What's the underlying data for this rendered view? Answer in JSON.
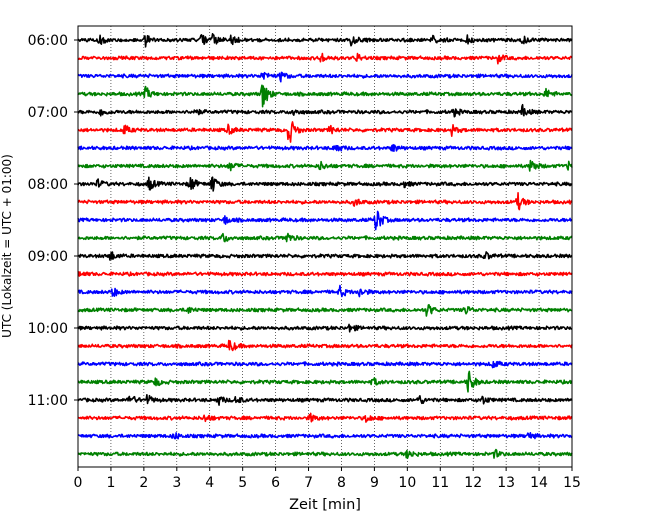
{
  "chart_data": {
    "type": "line",
    "subtype": "helicorder-seismogram",
    "xlabel": "Zeit  [min]",
    "ylabel": "UTC (Lokalzeit = UTC + 01:00)",
    "xlim": [
      0,
      15
    ],
    "x_ticks": [
      0,
      1,
      2,
      3,
      4,
      5,
      6,
      7,
      8,
      9,
      10,
      11,
      12,
      13,
      14,
      15
    ],
    "x_tick_labels": [
      "0",
      "1",
      "2",
      "3",
      "4",
      "5",
      "6",
      "7",
      "8",
      "9",
      "10",
      "11",
      "12",
      "13",
      "14",
      "15"
    ],
    "y_tick_labels": [
      {
        "label": "06:00",
        "trace": 0
      },
      {
        "label": "07:00",
        "trace": 4
      },
      {
        "label": "08:00",
        "trace": 8
      },
      {
        "label": "09:00",
        "trace": 12
      },
      {
        "label": "10:00",
        "trace": 16
      },
      {
        "label": "11:00",
        "trace": 20
      }
    ],
    "grid": "vertical-dotted",
    "minutes_per_trace": 15,
    "trace_colors": [
      "#000000",
      "#ff0000",
      "#0000ff",
      "#008000"
    ],
    "traces": [
      {
        "start": "06:00",
        "events": [
          [
            0.65,
            0.3
          ],
          [
            2.05,
            0.35
          ],
          [
            3.75,
            0.3
          ],
          [
            4.1,
            0.35
          ],
          [
            4.65,
            0.3
          ],
          [
            8.3,
            0.35
          ],
          [
            10.75,
            0.25
          ],
          [
            11.8,
            0.25
          ],
          [
            13.5,
            0.25
          ]
        ]
      },
      {
        "start": "06:15",
        "events": [
          [
            7.35,
            0.35
          ],
          [
            8.45,
            0.25
          ],
          [
            12.75,
            0.25
          ]
        ]
      },
      {
        "start": "06:30",
        "events": [
          [
            5.6,
            0.35
          ],
          [
            6.15,
            0.3
          ]
        ]
      },
      {
        "start": "06:45",
        "events": [
          [
            2.05,
            0.4
          ],
          [
            5.6,
            1.0
          ],
          [
            14.2,
            0.3
          ]
        ]
      },
      {
        "start": "07:00",
        "events": [
          [
            0.7,
            0.25
          ],
          [
            3.5,
            0.25
          ],
          [
            6.5,
            0.25
          ],
          [
            11.4,
            0.25
          ],
          [
            13.5,
            0.35
          ]
        ]
      },
      {
        "start": "07:15",
        "events": [
          [
            1.4,
            0.3
          ],
          [
            4.55,
            0.3
          ],
          [
            6.4,
            1.0
          ],
          [
            7.65,
            0.25
          ],
          [
            11.35,
            0.3
          ]
        ]
      },
      {
        "start": "07:30",
        "events": [
          [
            7.8,
            0.35
          ],
          [
            9.55,
            0.25
          ]
        ]
      },
      {
        "start": "07:45",
        "events": [
          [
            4.6,
            0.3
          ],
          [
            7.35,
            0.25
          ],
          [
            13.75,
            0.5
          ],
          [
            14.9,
            0.3
          ]
        ]
      },
      {
        "start": "08:00",
        "events": [
          [
            0.6,
            0.25
          ],
          [
            2.15,
            0.45
          ],
          [
            3.4,
            0.5
          ],
          [
            4.05,
            0.6
          ],
          [
            9.85,
            0.25
          ]
        ]
      },
      {
        "start": "08:15",
        "events": [
          [
            8.4,
            0.25
          ],
          [
            13.35,
            0.55
          ]
        ]
      },
      {
        "start": "08:30",
        "events": [
          [
            4.45,
            0.25
          ],
          [
            9.05,
            0.85
          ]
        ]
      },
      {
        "start": "08:45",
        "events": [
          [
            4.4,
            0.3
          ],
          [
            6.3,
            0.45
          ]
        ]
      },
      {
        "start": "09:00",
        "events": [
          [
            0.95,
            0.35
          ],
          [
            12.35,
            0.25
          ]
        ]
      },
      {
        "start": "09:15",
        "events": [
          [
            0.0,
            0.15
          ]
        ]
      },
      {
        "start": "09:30",
        "events": [
          [
            1.05,
            0.3
          ],
          [
            7.95,
            0.35
          ],
          [
            8.55,
            0.3
          ]
        ]
      },
      {
        "start": "09:45",
        "events": [
          [
            3.3,
            0.25
          ],
          [
            10.6,
            0.45
          ],
          [
            11.75,
            0.3
          ]
        ]
      },
      {
        "start": "10:00",
        "events": [
          [
            8.25,
            0.25
          ]
        ]
      },
      {
        "start": "10:15",
        "events": [
          [
            4.6,
            0.45
          ]
        ]
      },
      {
        "start": "10:30",
        "events": [
          [
            12.6,
            0.25
          ]
        ]
      },
      {
        "start": "10:45",
        "events": [
          [
            2.35,
            0.25
          ],
          [
            11.85,
            0.85
          ],
          [
            8.95,
            0.25
          ]
        ]
      },
      {
        "start": "11:00",
        "events": [
          [
            1.55,
            0.35
          ],
          [
            2.1,
            0.3
          ],
          [
            4.25,
            0.3
          ],
          [
            4.8,
            0.25
          ],
          [
            10.35,
            0.3
          ],
          [
            12.25,
            0.3
          ]
        ]
      },
      {
        "start": "11:15",
        "events": [
          [
            3.85,
            0.25
          ],
          [
            7.05,
            0.25
          ],
          [
            8.75,
            0.25
          ]
        ]
      },
      {
        "start": "11:30",
        "events": [
          [
            2.9,
            0.25
          ],
          [
            13.65,
            0.25
          ]
        ]
      },
      {
        "start": "11:45",
        "events": [
          [
            10.0,
            0.3
          ],
          [
            12.65,
            0.25
          ]
        ]
      }
    ]
  }
}
